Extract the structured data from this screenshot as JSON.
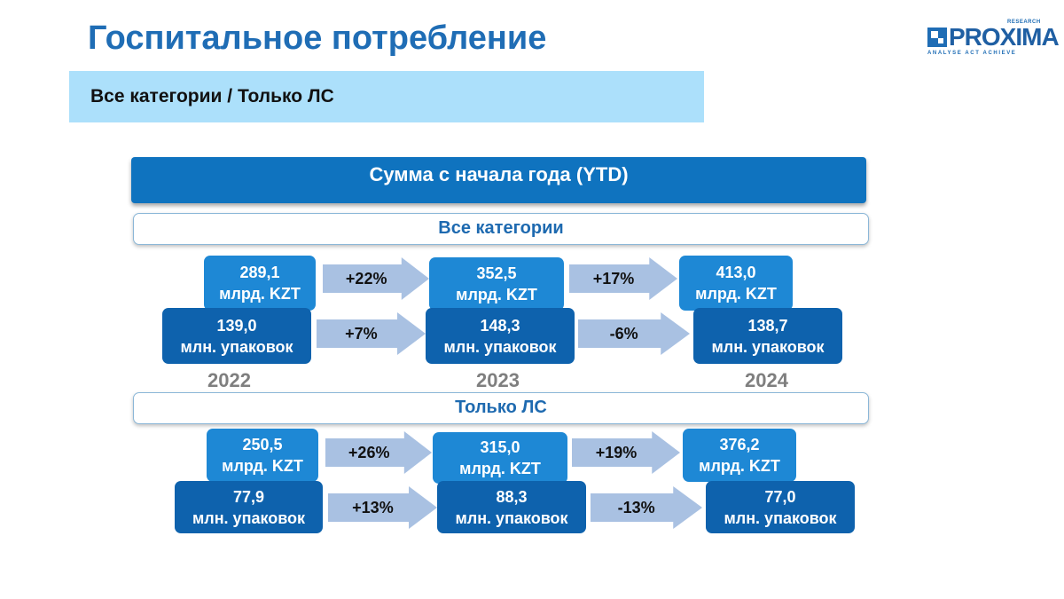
{
  "title": "Госпитальное потребление",
  "logo": {
    "name": "PROXIMA",
    "superscript": "RESEARCH",
    "tagline": "ANALYSE ACT ACHIEVE",
    "colors": {
      "mark": "#1f6db5",
      "text": "#1f5fa3"
    }
  },
  "subtitle": "Все категории / Только ЛС",
  "ytd_header": "Сумма с начала года (YTD)",
  "years": [
    "2022",
    "2023",
    "2024"
  ],
  "colors": {
    "title": "#1f6db5",
    "subtitle_band": "#ace0fb",
    "header": "#0f73bf",
    "value_box_light": "#1e88d5",
    "value_box_dark": "#0e62ad",
    "arrow": "#a9c1e2",
    "year_label": "#7f7f7f"
  },
  "sections": {
    "all": {
      "label": "Все категории",
      "money": {
        "values": [
          "289,1",
          "352,5",
          "413,0"
        ],
        "unit": "млрд. KZT",
        "changes": [
          "+22%",
          "+17%"
        ]
      },
      "packs": {
        "values": [
          "139,0",
          "148,3",
          "138,7"
        ],
        "unit": "млн. упаковок",
        "changes": [
          "+7%",
          "-6%"
        ]
      }
    },
    "ls": {
      "label": "Только ЛС",
      "money": {
        "values": [
          "250,5",
          "315,0",
          "376,2"
        ],
        "unit": "млрд. KZT",
        "changes": [
          "+26%",
          "+19%"
        ]
      },
      "packs": {
        "values": [
          "77,9",
          "88,3",
          "77,0"
        ],
        "unit": "млн. упаковок",
        "changes": [
          "+13%",
          "-13%"
        ]
      }
    }
  }
}
